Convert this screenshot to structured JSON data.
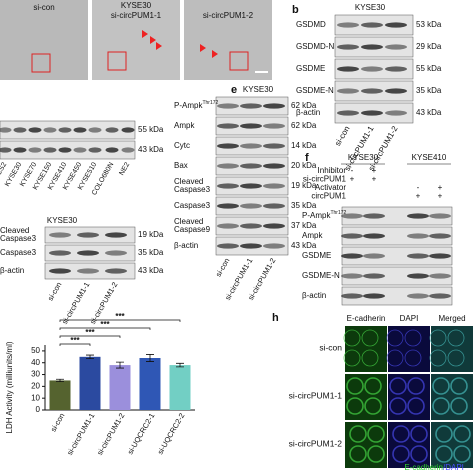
{
  "panel_a": {
    "title": "KYSE30",
    "images": [
      "si-con",
      "si-circPUM1-1",
      "si-circPUM1-2"
    ]
  },
  "panel_b": {
    "label": "b",
    "title": "KYSE30",
    "rows": [
      {
        "lines": [
          "GSDMD"
        ],
        "size": "53 kDa"
      },
      {
        "lines": [
          "GSDMD-N"
        ],
        "size": "29 kDa"
      },
      {
        "lines": [
          "GSDME"
        ],
        "size": "55 kDa"
      },
      {
        "lines": [
          "GSDME-N"
        ],
        "size": "35 kDa"
      },
      {
        "lines": [
          "β-actin"
        ],
        "size": "43 kDa"
      }
    ],
    "lanes": [
      "si-con",
      "si-circPUM1-1",
      "si-circPUM1-2"
    ]
  },
  "panel_c": {
    "rows": [
      {
        "size": "55 kDa"
      },
      {
        "size": "43 kDa"
      }
    ],
    "lanes": [
      "CS2",
      "KYSE30",
      "KYSE70",
      "KYSE150",
      "KYSE410",
      "KYSE450",
      "KYSE510",
      "COLO680N",
      "NE2"
    ]
  },
  "panel_d": {
    "title": "KYSE30",
    "rows": [
      {
        "lines": [
          "Cleaved",
          "Caspase3"
        ],
        "size": "19 kDa"
      },
      {
        "lines": [
          "Caspase3"
        ],
        "size": "35 kDa"
      },
      {
        "lines": [
          "β-actin"
        ],
        "size": "43 kDa"
      }
    ],
    "lanes": [
      "si-con",
      "si-circPUM1-1",
      "si-circPUM1-2"
    ]
  },
  "panel_e": {
    "label": "e",
    "title": "KYSE30",
    "rows": [
      {
        "lines": [
          "P-Ampk"
        ],
        "sup": "Thr172",
        "size": "62 kDa"
      },
      {
        "lines": [
          "Ampk"
        ],
        "size": "62 kDa"
      },
      {
        "lines": [
          "Cytc"
        ],
        "size": "14 kDa"
      },
      {
        "lines": [
          "Bax"
        ],
        "size": "20 kDa"
      },
      {
        "lines": [
          "Cleaved",
          "Caspase3"
        ],
        "size": "19 kDa"
      },
      {
        "lines": [
          "Caspase3"
        ],
        "size": "35 kDa"
      },
      {
        "lines": [
          "Cleaved",
          "Caspase9"
        ],
        "size": "37 kDa"
      },
      {
        "lines": [
          "β-actin"
        ],
        "size": "43 kDa"
      }
    ],
    "lanes": [
      "si-con",
      "si-circPUM1-1",
      "si-circPUM1-2"
    ]
  },
  "panel_f": {
    "label": "f",
    "groups": [
      "KYSE30",
      "KYSE410"
    ],
    "conditions": [
      {
        "name": "Inhibitor",
        "signs": [
          "-",
          "+",
          "",
          ""
        ]
      },
      {
        "name": "si-circPUM1",
        "signs": [
          "+",
          "+",
          "",
          ""
        ]
      },
      {
        "name": "Activator",
        "signs": [
          "",
          "",
          "-",
          "+"
        ]
      },
      {
        "name": "circPUM1",
        "signs": [
          "",
          "",
          "+",
          "+"
        ]
      }
    ],
    "rows": [
      {
        "lines": [
          "P-Ampk"
        ],
        "sup": "Thr172"
      },
      {
        "lines": [
          "Ampk"
        ]
      },
      {
        "lines": [
          "GSDME"
        ]
      },
      {
        "lines": [
          "GSDME-N"
        ]
      },
      {
        "lines": [
          "β-actin"
        ]
      }
    ]
  },
  "panel_h": {
    "label": "h",
    "columns": [
      "E-cadherin",
      "DAPI",
      "Merged"
    ],
    "rows": [
      "si-con",
      "si-circPUM1-1",
      "si-circPUM1-2"
    ],
    "legend": [
      "E-cadherin",
      "/DAPI"
    ]
  },
  "chart_data": {
    "type": "bar",
    "y_label": "LDH Activity (milliunits/ml)",
    "categories": [
      "si-con",
      "si-circPUM1-1",
      "si-circPUM1-2",
      "si-UQCRC2-1",
      "si-UQCRC2-2"
    ],
    "values": [
      25,
      45,
      38,
      44,
      38
    ],
    "errors": [
      1,
      1.5,
      2.5,
      3,
      1.5
    ],
    "colors": [
      "#55632f",
      "#2b4aa0",
      "#9b8fdc",
      "#2f57b5",
      "#72cfc4"
    ],
    "ylim": [
      0,
      55
    ],
    "yticks": [
      0,
      10,
      20,
      30,
      40,
      50
    ],
    "annotations": [
      "***",
      "***",
      "***",
      "***"
    ]
  }
}
